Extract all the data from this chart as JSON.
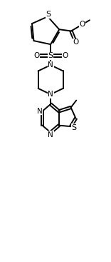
{
  "bg_color": "#ffffff",
  "line_color": "#000000",
  "line_width": 1.4,
  "font_size": 7.5,
  "fig_width": 1.56,
  "fig_height": 3.67,
  "dpi": 100,
  "xlim": [
    0,
    10
  ],
  "ylim": [
    0,
    24
  ]
}
